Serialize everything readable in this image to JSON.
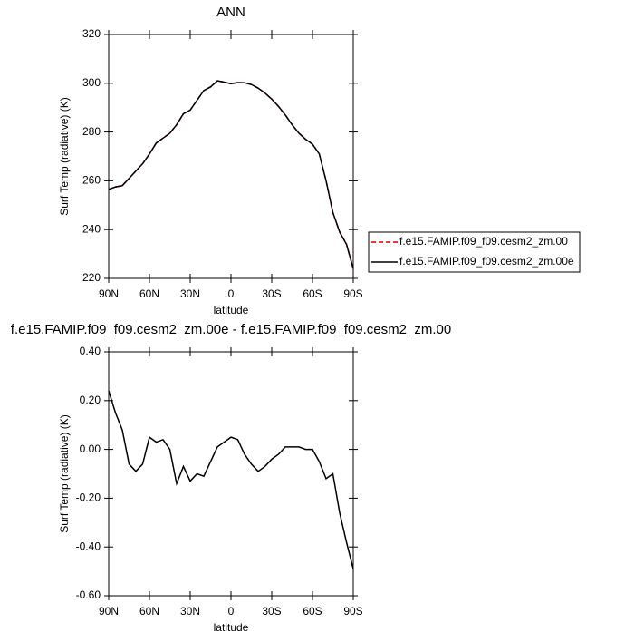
{
  "chart_data": [
    {
      "type": "line",
      "title": "ANN",
      "xlabel": "latitude",
      "ylabel": "Surf Temp (radiative) (K)",
      "x": [
        90,
        85,
        80,
        75,
        70,
        65,
        60,
        55,
        50,
        45,
        40,
        35,
        30,
        25,
        20,
        15,
        10,
        5,
        0,
        -5,
        -10,
        -15,
        -20,
        -25,
        -30,
        -35,
        -40,
        -45,
        -50,
        -55,
        -60,
        -65,
        -70,
        -75,
        -80,
        -85,
        -90
      ],
      "series": [
        {
          "name": "f.e15.FAMIP.f09_f09.cesm2_zm.00",
          "color": "#cc0000",
          "style": "dashed",
          "values": [
            256.5,
            257.5,
            258,
            261,
            264,
            267,
            271,
            275.5,
            277.5,
            279.5,
            283,
            287.5,
            289,
            293,
            297,
            298.5,
            301,
            300.5,
            299.8,
            300.3,
            300.2,
            299.5,
            298,
            296,
            293.5,
            290.5,
            287,
            283,
            279.5,
            277,
            275,
            271,
            260,
            247,
            239,
            234,
            224
          ]
        },
        {
          "name": "f.e15.FAMIP.f09_f09.cesm2_zm.00e",
          "color": "#000000",
          "style": "solid",
          "values": [
            256.5,
            257.5,
            258,
            261,
            264,
            267,
            271,
            275.5,
            277.5,
            279.5,
            283,
            287.5,
            289,
            293,
            297,
            298.5,
            301,
            300.5,
            299.8,
            300.3,
            300.2,
            299.5,
            298,
            296,
            293.5,
            290.5,
            287,
            283,
            279.5,
            277,
            275,
            271,
            260,
            247,
            239,
            234,
            224
          ]
        }
      ],
      "xlim": [
        90,
        -90
      ],
      "xticks": [
        {
          "value": 90,
          "label": "90N"
        },
        {
          "value": 60,
          "label": "60N"
        },
        {
          "value": 30,
          "label": "30N"
        },
        0,
        {
          "value": -30,
          "label": "30S"
        },
        {
          "value": -60,
          "label": "60S"
        },
        {
          "value": -90,
          "label": "90S"
        }
      ],
      "ylim": [
        220,
        320
      ],
      "yticks": [
        220,
        240,
        260,
        280,
        300,
        320
      ],
      "legend": "right"
    },
    {
      "type": "line",
      "title": "f.e15.FAMIP.f09_f09.cesm2_zm.00e - f.e15.FAMIP.f09_f09.cesm2_zm.00",
      "xlabel": "latitude",
      "ylabel": "Surf Temp (radiative) (K)",
      "x": [
        90,
        85,
        80,
        75,
        70,
        65,
        60,
        55,
        50,
        45,
        40,
        35,
        30,
        25,
        20,
        15,
        10,
        5,
        0,
        -5,
        -10,
        -15,
        -20,
        -25,
        -30,
        -35,
        -40,
        -45,
        -50,
        -55,
        -60,
        -65,
        -70,
        -75,
        -80,
        -85,
        -90
      ],
      "series": [
        {
          "color": "#000000",
          "style": "solid",
          "values": [
            0.24,
            0.15,
            0.08,
            -0.06,
            -0.09,
            -0.06,
            0.05,
            0.03,
            0.04,
            0.0,
            -0.14,
            -0.07,
            -0.13,
            -0.1,
            -0.11,
            -0.05,
            0.01,
            0.03,
            0.05,
            0.04,
            -0.02,
            -0.06,
            -0.09,
            -0.07,
            -0.04,
            -0.02,
            0.01,
            0.01,
            0.01,
            0.0,
            0.0,
            -0.05,
            -0.12,
            -0.1,
            -0.26,
            -0.38,
            -0.49
          ]
        }
      ],
      "xlim": [
        90,
        -90
      ],
      "xticks": [
        {
          "value": 90,
          "label": "90N"
        },
        {
          "value": 60,
          "label": "60N"
        },
        {
          "value": 30,
          "label": "30N"
        },
        0,
        {
          "value": -30,
          "label": "30S"
        },
        {
          "value": -60,
          "label": "60S"
        },
        {
          "value": -90,
          "label": "90S"
        }
      ],
      "ylim": [
        -0.6,
        0.4
      ],
      "yticks": [
        {
          "value": -0.6,
          "label": "-0.60"
        },
        {
          "value": -0.4,
          "label": "-0.40"
        },
        {
          "value": -0.2,
          "label": "-0.20"
        },
        {
          "value": 0,
          "label": "0.00"
        },
        {
          "value": 0.2,
          "label": "0.20"
        },
        {
          "value": 0.4,
          "label": "0.40"
        }
      ]
    }
  ]
}
